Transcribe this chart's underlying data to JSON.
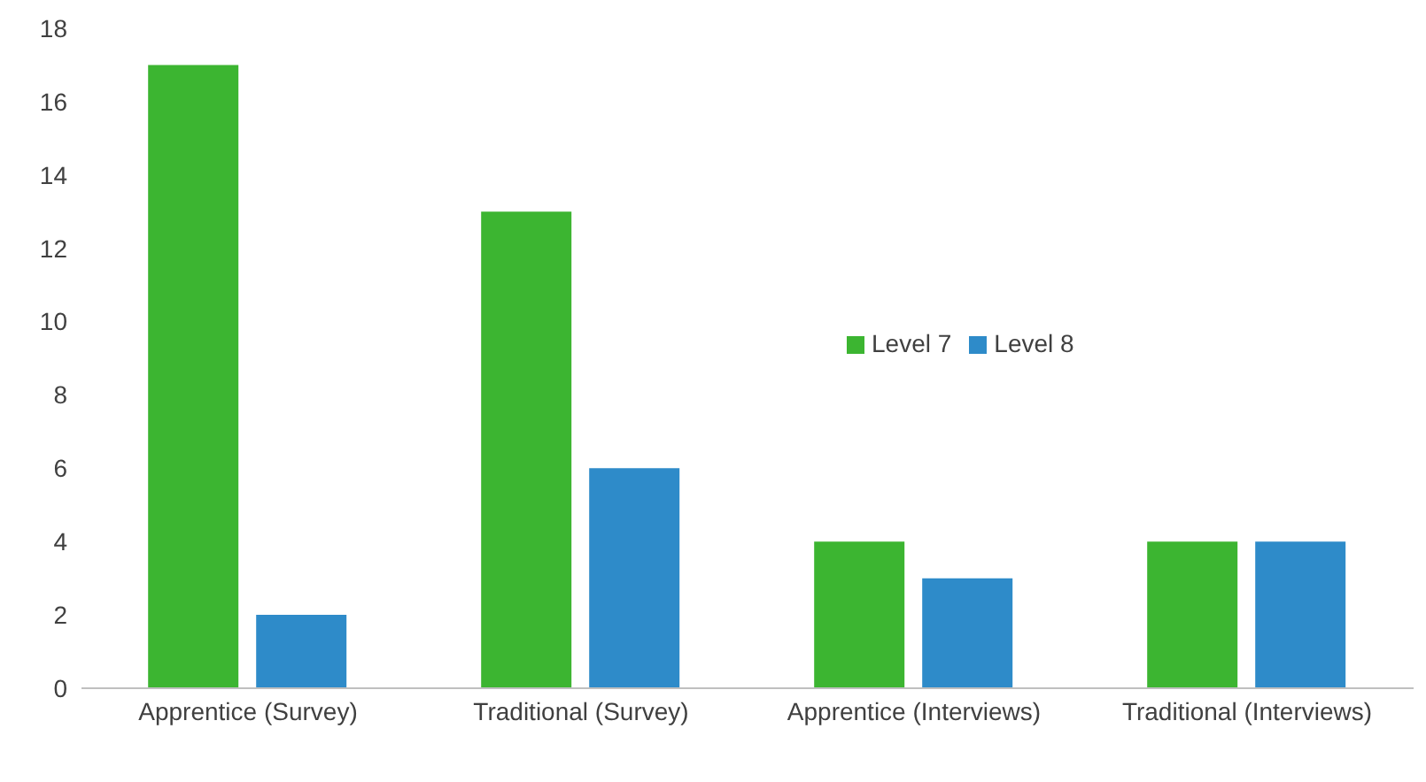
{
  "chart_data": {
    "type": "bar",
    "categories": [
      "Apprentice (Survey)",
      "Traditional (Survey)",
      "Apprentice (Interviews)",
      "Traditional (Interviews)"
    ],
    "series": [
      {
        "name": "Level 7",
        "color": "#3cb531",
        "values": [
          17,
          13,
          4,
          4
        ]
      },
      {
        "name": "Level 8",
        "color": "#2e8bc9",
        "values": [
          2,
          6,
          3,
          4
        ]
      }
    ],
    "ylim": [
      0,
      18
    ],
    "yticks": [
      0,
      2,
      4,
      6,
      8,
      10,
      12,
      14,
      16,
      18
    ],
    "grid": false,
    "legend": "center"
  }
}
